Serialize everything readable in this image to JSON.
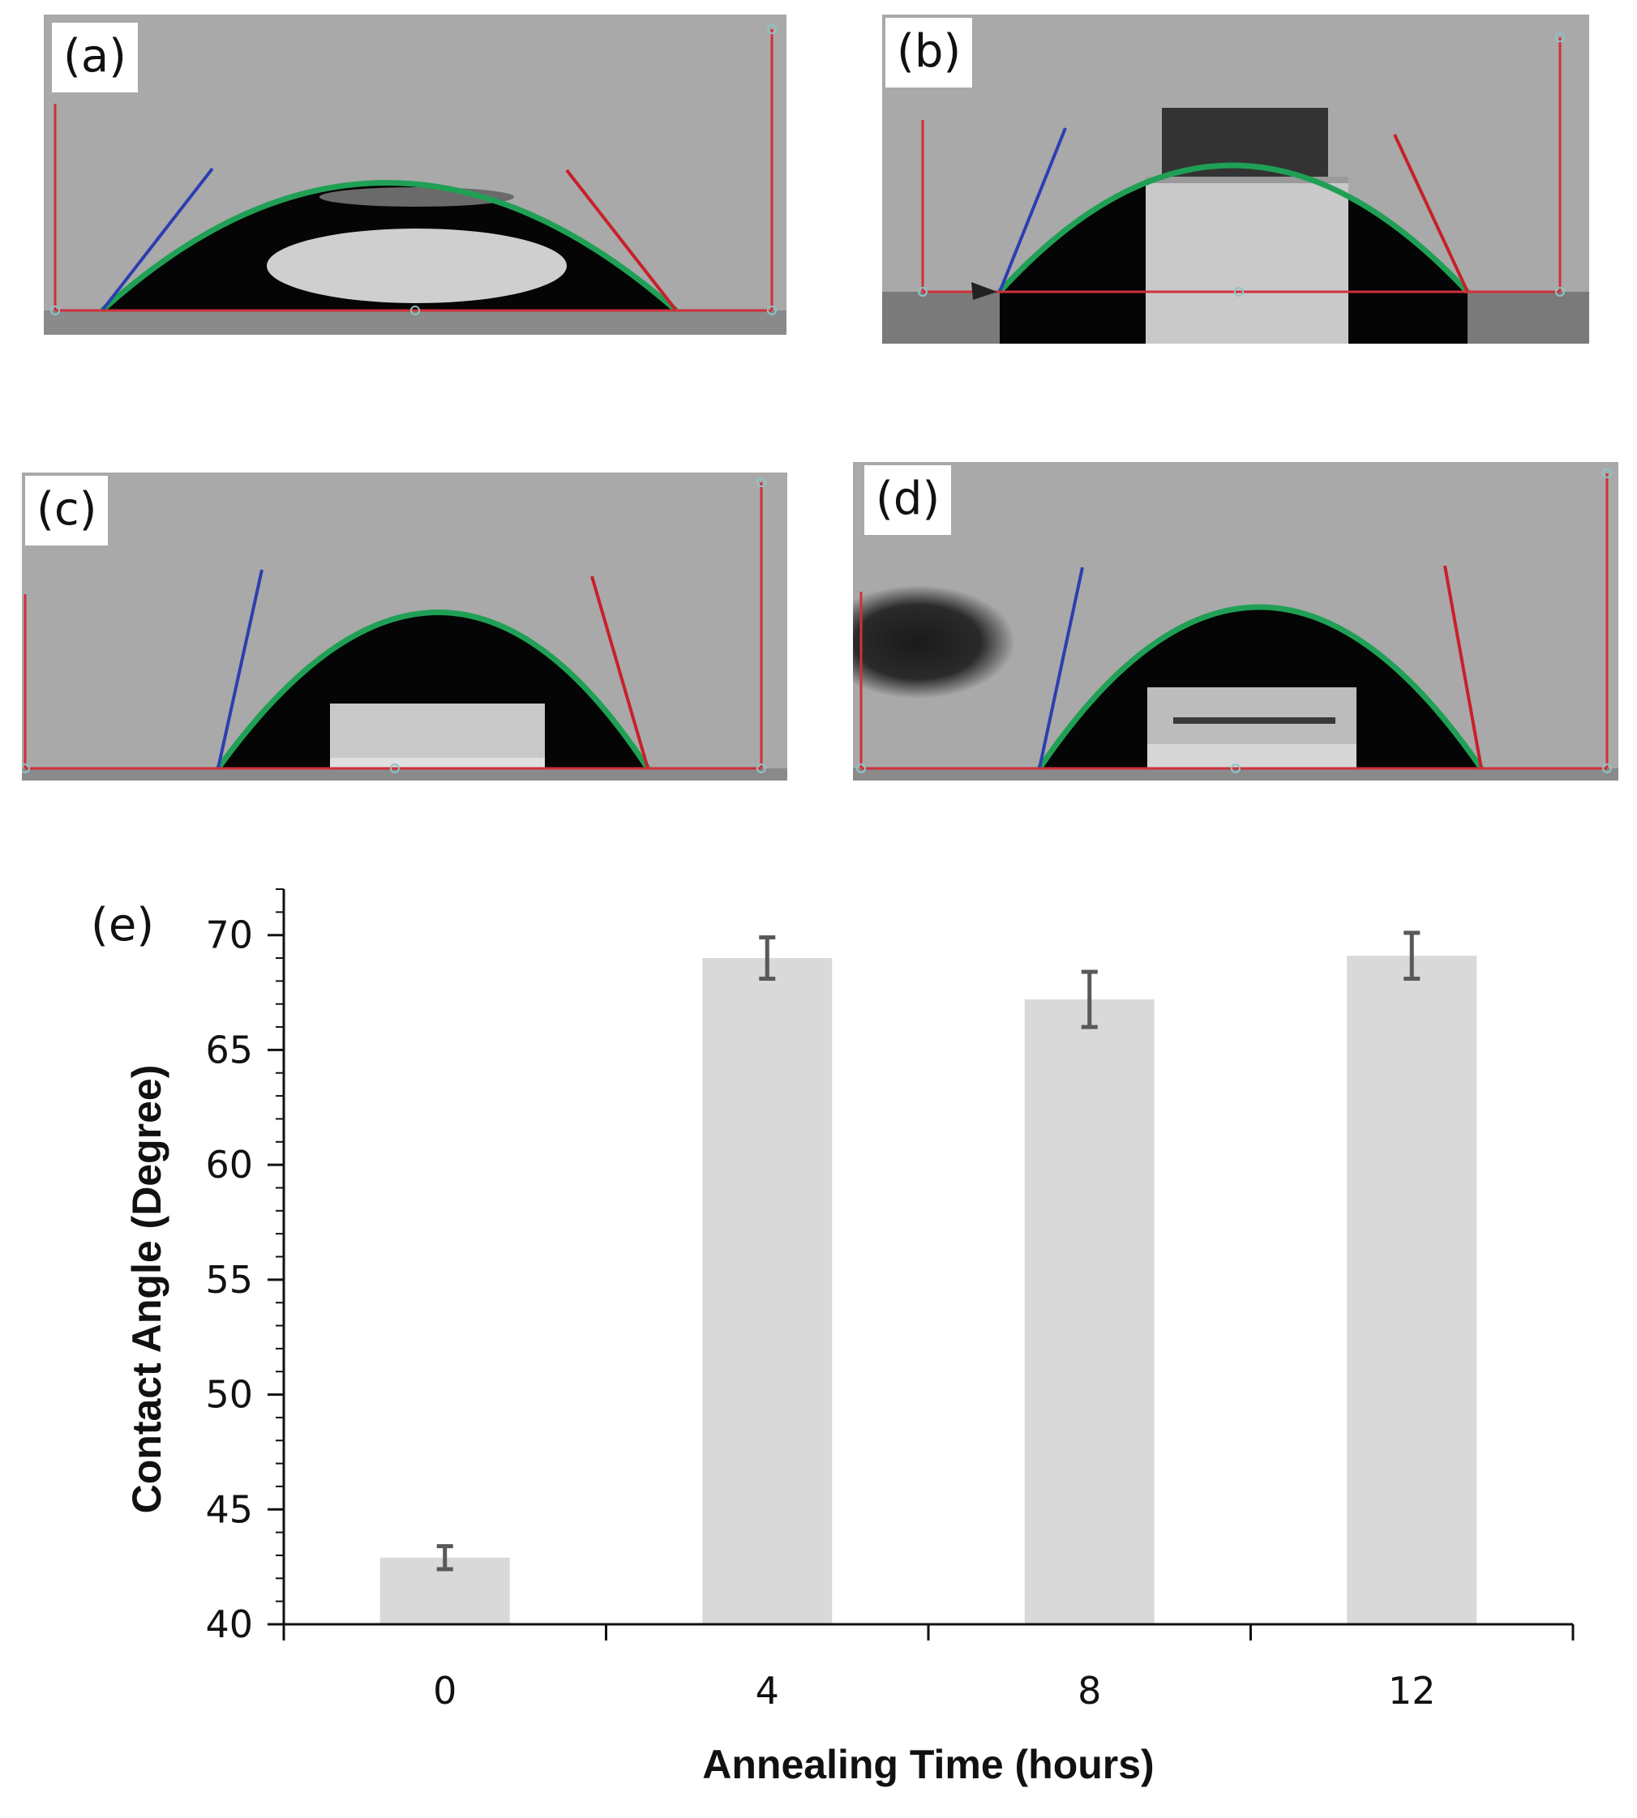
{
  "photo_panels": [
    {
      "label": "(a)"
    },
    {
      "label": "(b)"
    },
    {
      "label": "(c)"
    },
    {
      "label": "(d)"
    }
  ],
  "chart_data": {
    "type": "bar",
    "panel_label": "(e)",
    "categories": [
      "0",
      "4",
      "8",
      "12"
    ],
    "values": [
      42.9,
      69.0,
      67.2,
      69.1
    ],
    "error": [
      0.5,
      0.9,
      1.2,
      1.0
    ],
    "xlabel": "Annealing Time (hours)",
    "ylabel": "Contact Angle (Degree)",
    "ylim": [
      40,
      72
    ],
    "yticks": [
      40,
      45,
      50,
      55,
      60,
      65,
      70
    ],
    "xlim": [
      -2,
      14
    ],
    "bar_color": "#d9d9d9",
    "error_color": "#595959",
    "grid": false,
    "legend": "none"
  }
}
